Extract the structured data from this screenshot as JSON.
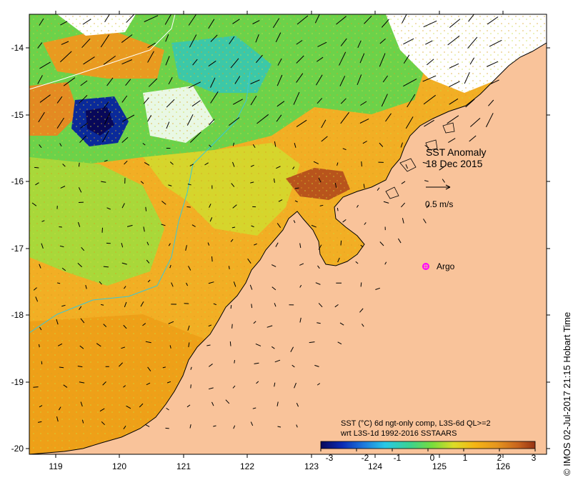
{
  "map": {
    "title_line1": "SST Anomaly",
    "title_line2": "18 Dec 2015",
    "scale_arrow_label": "0.5 m/s",
    "argo_label": "Argo",
    "caption_line1": "SST (°C) 6d ngt-only comp, L3S-6d QL>=2",
    "caption_line2": "wrt L3S-1d 1992-2016 SSTAARS",
    "credit": "© IMOS 02-Jul-2017 21:15 Hobart Time",
    "lat_labels": [
      "-14",
      "-15",
      "-16",
      "-17",
      "-18",
      "-19",
      "-20"
    ],
    "lon_labels": [
      "119",
      "120",
      "121",
      "122",
      "123",
      "124",
      "125",
      "126"
    ],
    "colorbar_labels": [
      "-3",
      "-2",
      "-1",
      "0",
      "1",
      "2",
      "3"
    ],
    "colors": {
      "land": "#f9c39a",
      "argo": "#ff00ff",
      "colorbar": [
        "#08085a",
        "#0a2ab4",
        "#1e78dc",
        "#28c8e6",
        "#3cd28c",
        "#78dc3c",
        "#dcdc28",
        "#f5b414",
        "#e6961e",
        "#c8641e",
        "#963214"
      ]
    }
  }
}
